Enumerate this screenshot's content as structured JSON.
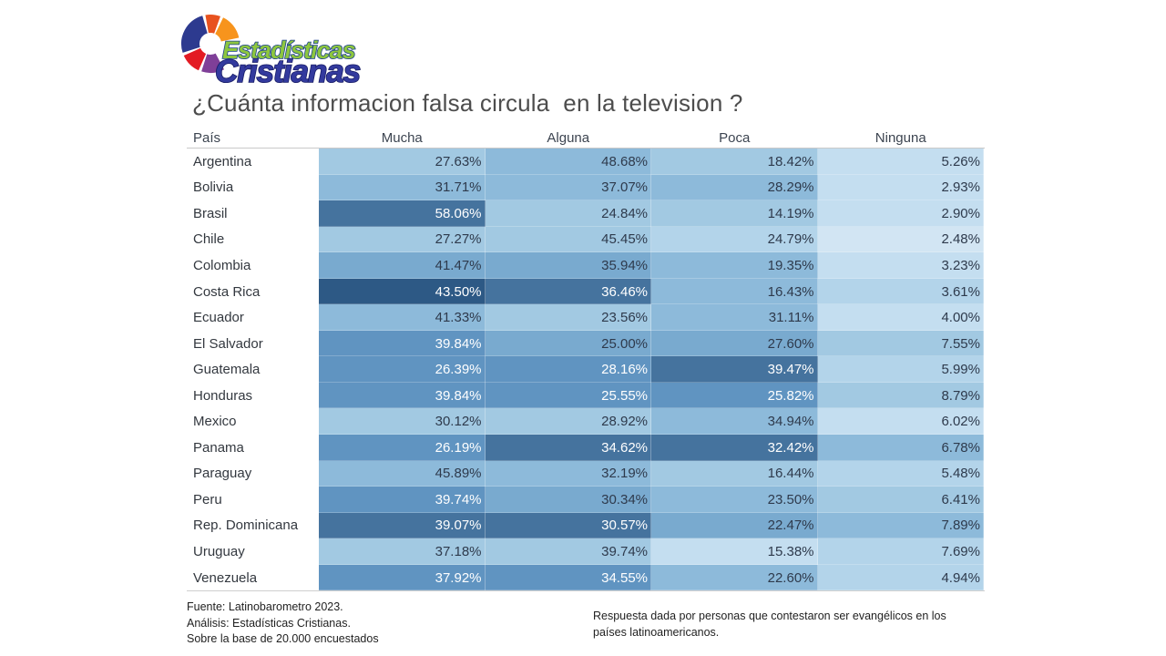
{
  "logo": {
    "line1": "Estadísticas",
    "line2": "Cristianas",
    "colors": {
      "wheel_blue": "#2d3a8f",
      "wheel_red_orange": "#e8521f",
      "wheel_orange": "#f7941d",
      "wheel_red": "#e31b23",
      "wheel_purple": "#7f3f98",
      "line1_fill": "#8dc63f",
      "line1_outline": "#1a3e8f",
      "line2_fill": "#333a9e",
      "line2_outline": "#181d66"
    }
  },
  "title": "¿Cuánta informacion falsa circula  en la television ?",
  "table": {
    "columns": [
      "País",
      "Mucha",
      "Alguna",
      "Poca",
      "Ninguna"
    ],
    "palette": [
      "#d2e5f3",
      "#c4def0",
      "#b3d4ea",
      "#a2c9e2",
      "#8dbada",
      "#79aacf",
      "#6094c1",
      "#45739e",
      "#2d5985"
    ],
    "white_text_threshold": 6,
    "text_dark": "#2e3a4c",
    "text_light": "#ffffff",
    "rows": [
      {
        "country": "Argentina",
        "values": [
          "27.63%",
          "48.68%",
          "18.42%",
          "5.26%"
        ],
        "shades": [
          3,
          4,
          3,
          1
        ]
      },
      {
        "country": "Bolivia",
        "values": [
          "31.71%",
          "37.07%",
          "28.29%",
          "2.93%"
        ],
        "shades": [
          4,
          4,
          4,
          1
        ]
      },
      {
        "country": "Brasil",
        "values": [
          "58.06%",
          "24.84%",
          "14.19%",
          "2.90%"
        ],
        "shades": [
          7,
          3,
          3,
          1
        ]
      },
      {
        "country": "Chile",
        "values": [
          "27.27%",
          "45.45%",
          "24.79%",
          "2.48%"
        ],
        "shades": [
          3,
          3,
          2,
          0
        ]
      },
      {
        "country": "Colombia",
        "values": [
          "41.47%",
          "35.94%",
          "19.35%",
          "3.23%"
        ],
        "shades": [
          5,
          5,
          4,
          1
        ]
      },
      {
        "country": "Costa Rica",
        "values": [
          "43.50%",
          "36.46%",
          "16.43%",
          "3.61%"
        ],
        "shades": [
          8,
          7,
          4,
          2
        ]
      },
      {
        "country": "Ecuador",
        "values": [
          "41.33%",
          "23.56%",
          "31.11%",
          "4.00%"
        ],
        "shades": [
          4,
          3,
          4,
          1
        ]
      },
      {
        "country": "El Salvador",
        "values": [
          "39.84%",
          "25.00%",
          "27.60%",
          "7.55%"
        ],
        "shades": [
          6,
          5,
          5,
          3
        ]
      },
      {
        "country": "Guatemala",
        "values": [
          "26.39%",
          "28.16%",
          "39.47%",
          "5.99%"
        ],
        "shades": [
          6,
          6,
          7,
          2
        ]
      },
      {
        "country": "Honduras",
        "values": [
          "39.84%",
          "25.55%",
          "25.82%",
          "8.79%"
        ],
        "shades": [
          6,
          6,
          6,
          3
        ]
      },
      {
        "country": "Mexico",
        "values": [
          "30.12%",
          "28.92%",
          "34.94%",
          "6.02%"
        ],
        "shades": [
          3,
          3,
          4,
          1
        ]
      },
      {
        "country": "Panama",
        "values": [
          "26.19%",
          "34.62%",
          "32.42%",
          "6.78%"
        ],
        "shades": [
          6,
          7,
          7,
          4
        ]
      },
      {
        "country": "Paraguay",
        "values": [
          "45.89%",
          "32.19%",
          "16.44%",
          "5.48%"
        ],
        "shades": [
          4,
          4,
          3,
          2
        ]
      },
      {
        "country": "Peru",
        "values": [
          "39.74%",
          "30.34%",
          "23.50%",
          "6.41%"
        ],
        "shades": [
          6,
          5,
          4,
          3
        ]
      },
      {
        "country": "Rep. Dominicana",
        "values": [
          "39.07%",
          "30.57%",
          "22.47%",
          "7.89%"
        ],
        "shades": [
          7,
          7,
          5,
          4
        ]
      },
      {
        "country": "Uruguay",
        "values": [
          "37.18%",
          "39.74%",
          "15.38%",
          "7.69%"
        ],
        "shades": [
          3,
          3,
          1,
          2
        ]
      },
      {
        "country": "Venezuela",
        "values": [
          "37.92%",
          "34.55%",
          "22.60%",
          "4.94%"
        ],
        "shades": [
          6,
          6,
          4,
          2
        ]
      }
    ]
  },
  "footnotes": {
    "left_line1": "Fuente: Latinobarometro 2023.",
    "left_line2": "Análisis: Estadísticas Cristianas.",
    "left_line3": "Sobre la base de 20.000 encuestados",
    "right": "Respuesta dada por personas que contestaron ser evangélicos en los países latinoamericanos."
  },
  "chart_data": {
    "type": "heatmap",
    "title": "¿Cuánta informacion falsa circula en la television ?",
    "unit": "%",
    "categories": [
      "Argentina",
      "Bolivia",
      "Brasil",
      "Chile",
      "Colombia",
      "Costa Rica",
      "Ecuador",
      "El Salvador",
      "Guatemala",
      "Honduras",
      "Mexico",
      "Panama",
      "Paraguay",
      "Peru",
      "Rep. Dominicana",
      "Uruguay",
      "Venezuela"
    ],
    "columns": [
      "Mucha",
      "Alguna",
      "Poca",
      "Ninguna"
    ],
    "series": [
      {
        "name": "Mucha",
        "values": [
          27.63,
          31.71,
          58.06,
          27.27,
          41.47,
          43.5,
          41.33,
          39.84,
          26.39,
          39.84,
          30.12,
          26.19,
          45.89,
          39.74,
          39.07,
          37.18,
          37.92
        ]
      },
      {
        "name": "Alguna",
        "values": [
          48.68,
          37.07,
          24.84,
          45.45,
          35.94,
          36.46,
          23.56,
          25.0,
          28.16,
          25.55,
          28.92,
          34.62,
          32.19,
          30.34,
          30.57,
          39.74,
          34.55
        ]
      },
      {
        "name": "Poca",
        "values": [
          18.42,
          28.29,
          14.19,
          24.79,
          19.35,
          16.43,
          31.11,
          27.6,
          39.47,
          25.82,
          34.94,
          32.42,
          16.44,
          23.5,
          22.47,
          15.38,
          22.6
        ]
      },
      {
        "name": "Ninguna",
        "values": [
          5.26,
          2.93,
          2.9,
          2.48,
          3.23,
          3.61,
          4.0,
          7.55,
          5.99,
          8.79,
          6.02,
          6.78,
          5.48,
          6.41,
          7.89,
          7.69,
          4.94
        ]
      }
    ],
    "legend_position": "none",
    "grid": false,
    "color_note": "cell shading blue scale, darker = separate emphasis measure"
  }
}
